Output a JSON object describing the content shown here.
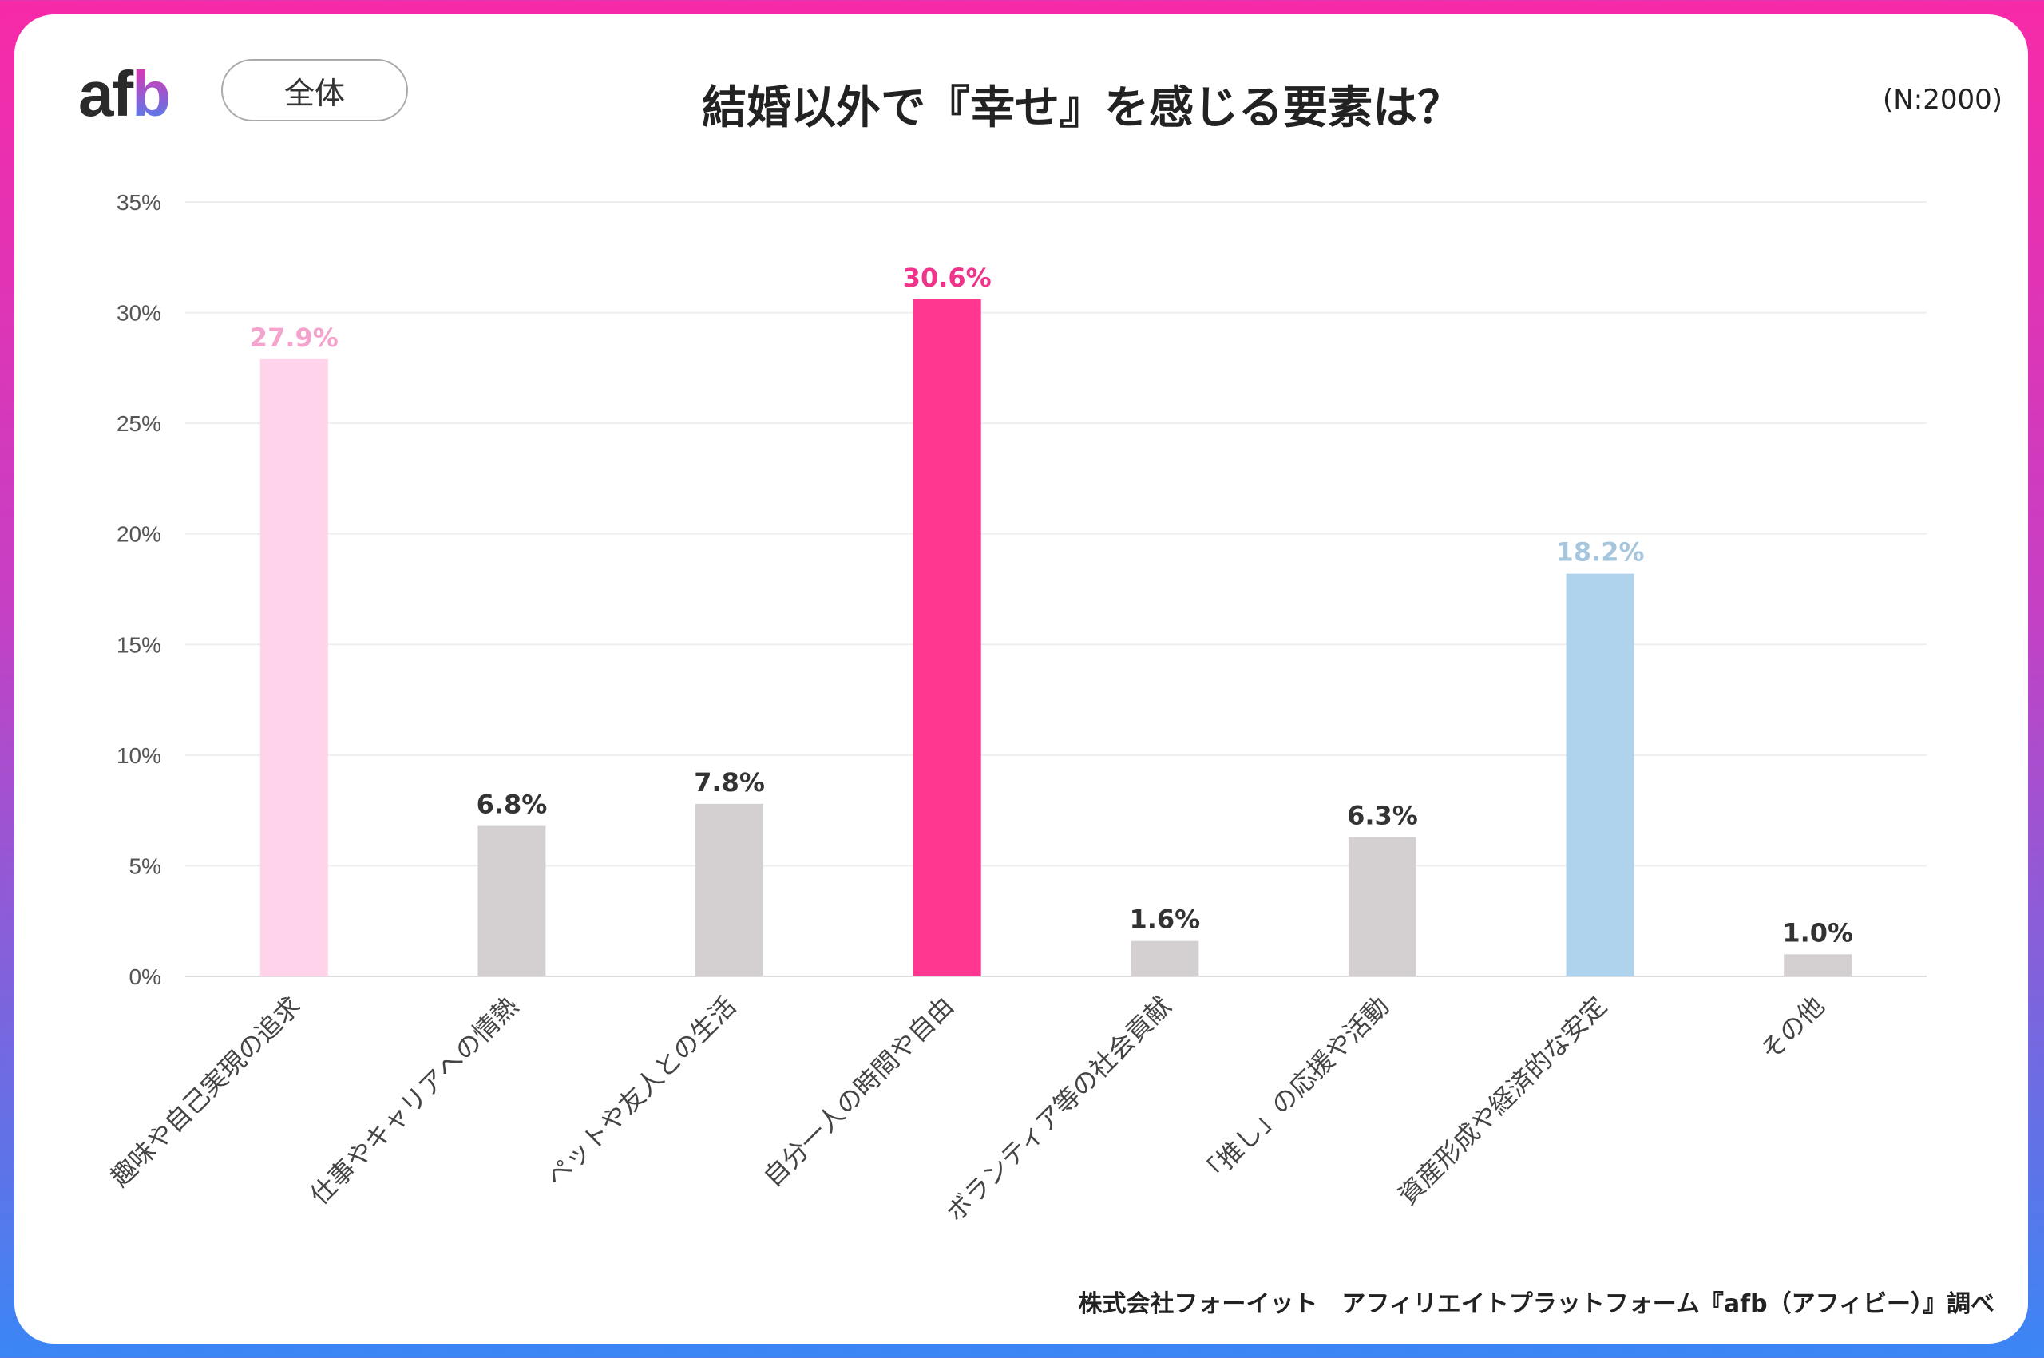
{
  "header": {
    "logo": "afb",
    "segment_label": "全体",
    "sample_size": "(N:2000)"
  },
  "footer": {
    "source": "株式会社フォーイット　アフィリエイトプラットフォーム『afb（アフィビー）』調べ"
  },
  "colors": {
    "border_top": "#f72aa8",
    "border_bottom": "#3a86f5"
  },
  "chart_data": {
    "type": "bar",
    "title": "結婚以外で『幸せ』を感じる要素は？",
    "xlabel": "",
    "ylabel": "",
    "ylim": [
      0,
      35
    ],
    "yticks": [
      "0%",
      "5%",
      "10%",
      "15%",
      "20%",
      "25%",
      "30%",
      "35%"
    ],
    "grid": true,
    "categories": [
      "趣味や自己実現の追求",
      "仕事やキャリアへの情熱",
      "ペットや友人との生活",
      "自分一人の時間や自由",
      "ボランティア等の社会貢献",
      "「推し」の応援や活動",
      "資産形成や経済的な安定",
      "その他"
    ],
    "values": [
      27.9,
      6.8,
      7.8,
      30.6,
      1.6,
      6.3,
      18.2,
      1.0
    ],
    "data_labels": [
      "27.9%",
      "6.8%",
      "7.8%",
      "30.6%",
      "1.6%",
      "6.3%",
      "18.2%",
      "1.0%"
    ],
    "bar_colors": [
      "#ffd3ea",
      "#d4d0d2",
      "#d4d0d2",
      "#ff3790",
      "#d4d0d2",
      "#d4d0d2",
      "#afd3ec",
      "#d4d0d2"
    ],
    "label_colors": [
      "#f4a3cc",
      "#333333",
      "#333333",
      "#f0348c",
      "#333333",
      "#333333",
      "#a6c6de",
      "#333333"
    ]
  }
}
